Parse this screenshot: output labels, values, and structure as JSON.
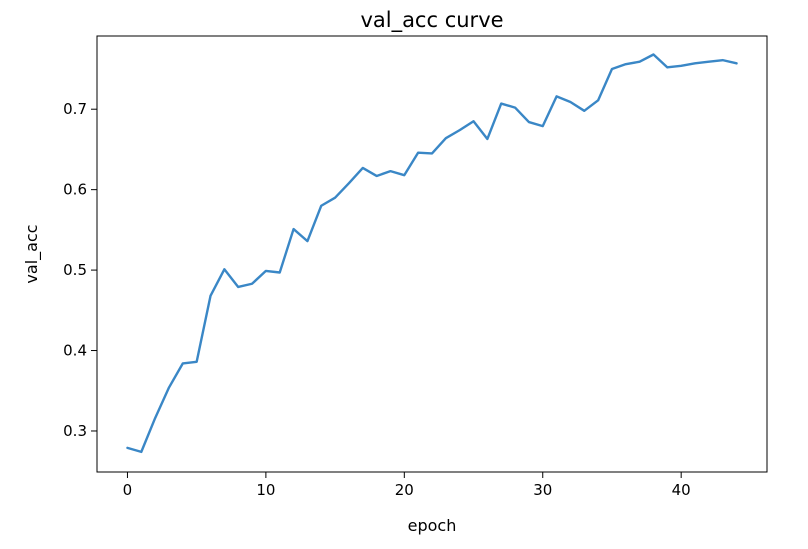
{
  "chart_data": {
    "type": "line",
    "title": "val_acc curve",
    "xlabel": "epoch",
    "ylabel": "val_acc",
    "xlim": [
      -2.2,
      46.2
    ],
    "ylim": [
      0.249,
      0.791
    ],
    "xticks": [
      0,
      10,
      20,
      30,
      40
    ],
    "yticks": [
      0.3,
      0.4,
      0.5,
      0.6,
      0.7
    ],
    "xtick_labels": [
      "0",
      "10",
      "20",
      "30",
      "40"
    ],
    "ytick_labels": [
      "0.3",
      "0.4",
      "0.5",
      "0.6",
      "0.7"
    ],
    "grid": false,
    "line_color": "#3a87c6",
    "series": [
      {
        "x": [
          0,
          1,
          2,
          3,
          4,
          5,
          6,
          7,
          8,
          9,
          10,
          11,
          12,
          13,
          14,
          15,
          16,
          17,
          18,
          19,
          20,
          21,
          22,
          23,
          24,
          25,
          26,
          27,
          28,
          29,
          30,
          31,
          32,
          33,
          34,
          35,
          36,
          37,
          38,
          39,
          40,
          41,
          42,
          43,
          44
        ],
        "values": [
          0.279,
          0.274,
          0.316,
          0.354,
          0.384,
          0.386,
          0.468,
          0.501,
          0.479,
          0.483,
          0.499,
          0.497,
          0.551,
          0.536,
          0.58,
          0.59,
          0.608,
          0.627,
          0.617,
          0.623,
          0.618,
          0.646,
          0.645,
          0.664,
          0.674,
          0.685,
          0.663,
          0.707,
          0.702,
          0.684,
          0.679,
          0.716,
          0.709,
          0.698,
          0.711,
          0.75,
          0.756,
          0.759,
          0.768,
          0.752,
          0.754,
          0.757,
          0.759,
          0.761,
          0.757
        ]
      }
    ]
  }
}
